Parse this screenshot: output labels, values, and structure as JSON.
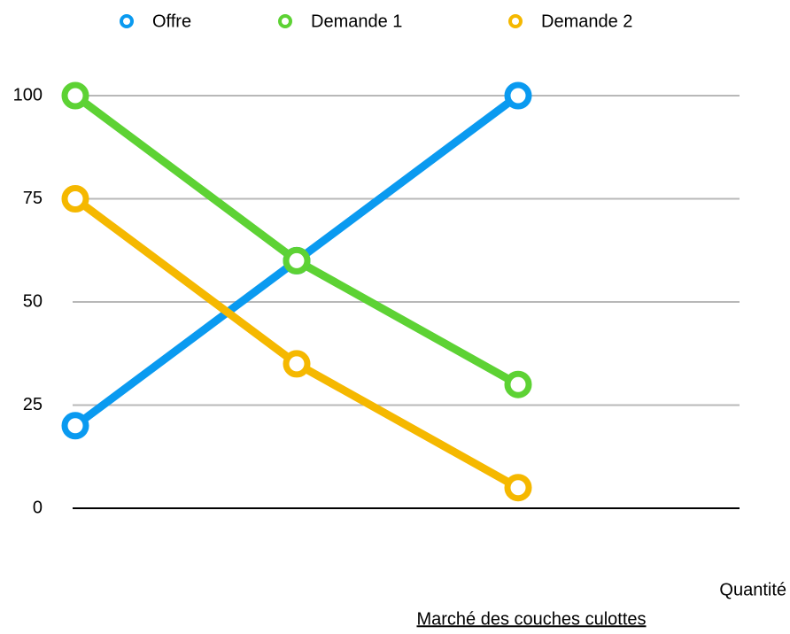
{
  "chart_data": {
    "type": "line",
    "title": "Marché des couches culottes",
    "x_label": "Quantité",
    "categories": [
      null,
      null,
      null
    ],
    "series": [
      {
        "name": "Offre",
        "color": "#0a9af0",
        "values": [
          20,
          60,
          100
        ]
      },
      {
        "name": "Demande 1",
        "color": "#5dd234",
        "values": [
          100,
          60,
          30
        ]
      },
      {
        "name": "Demande 2",
        "color": "#f5b800",
        "values": [
          75,
          35,
          5
        ]
      }
    ],
    "ylim": [
      0,
      100
    ],
    "yticks": [
      0,
      25,
      50,
      75,
      100
    ],
    "grid": true,
    "legend": "top"
  }
}
